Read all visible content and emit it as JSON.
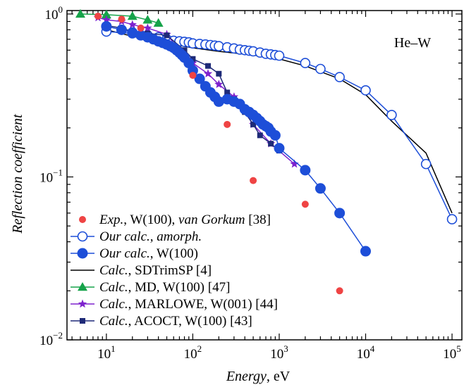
{
  "chart_data": {
    "type": "scatter",
    "xlabel_italic": "Energy",
    "xlabel_rest": ", eV",
    "ylabel": "Reflection coefficient",
    "x_scale": "log",
    "y_scale": "log",
    "xlim": [
      3.5,
      130000
    ],
    "ylim": [
      0.01,
      1.05
    ],
    "annotation": "He–W",
    "grid": false,
    "legend_position": "bottom-left",
    "x_ticks": [
      {
        "value": 10,
        "base": "10",
        "exp": "1"
      },
      {
        "value": 100,
        "base": "10",
        "exp": "2"
      },
      {
        "value": 1000,
        "base": "10",
        "exp": "3"
      },
      {
        "value": 10000,
        "base": "10",
        "exp": "4"
      },
      {
        "value": 100000,
        "base": "10",
        "exp": "5"
      }
    ],
    "y_ticks": [
      {
        "value": 1,
        "base": "10",
        "exp": "0"
      },
      {
        "value": 0.1,
        "base": "10",
        "exp": "−1"
      },
      {
        "value": 0.01,
        "base": "10",
        "exp": "−2"
      }
    ],
    "series": [
      {
        "legend": [
          {
            "t": "Exp.",
            "i": true
          },
          {
            "t": ", W(100), ",
            "i": false
          },
          {
            "t": "van Gorkum",
            "i": true
          },
          {
            "t": " [38]",
            "i": false
          }
        ],
        "color": "#ef4444",
        "marker": "dot",
        "line": false,
        "x": [
          8,
          15,
          25,
          100,
          250,
          500,
          2000,
          5000
        ],
        "y": [
          0.97,
          0.93,
          0.82,
          0.42,
          0.21,
          0.095,
          0.068,
          0.02
        ]
      },
      {
        "legend": [
          {
            "t": "Our calc., amorph.",
            "i": true
          }
        ],
        "color": "#1d4ed8",
        "marker": "open-circle",
        "line": true,
        "x": [
          10,
          20,
          30,
          40,
          50,
          60,
          70,
          80,
          90,
          100,
          120,
          140,
          160,
          180,
          200,
          250,
          300,
          350,
          400,
          450,
          500,
          600,
          700,
          800,
          900,
          1000,
          2000,
          3000,
          5000,
          10000,
          20000,
          50000,
          100000
        ],
        "y": [
          0.78,
          0.76,
          0.74,
          0.72,
          0.7,
          0.685,
          0.68,
          0.675,
          0.67,
          0.66,
          0.655,
          0.65,
          0.645,
          0.64,
          0.635,
          0.625,
          0.615,
          0.605,
          0.6,
          0.595,
          0.59,
          0.58,
          0.57,
          0.565,
          0.56,
          0.555,
          0.5,
          0.46,
          0.41,
          0.34,
          0.24,
          0.12,
          0.055
        ]
      },
      {
        "legend": [
          {
            "t": "Our calc.",
            "i": true
          },
          {
            "t": ", W(100)",
            "i": false
          }
        ],
        "color": "#1d4ed8",
        "marker": "filled-circle",
        "line": true,
        "x": [
          10,
          15,
          20,
          25,
          30,
          35,
          40,
          45,
          50,
          55,
          60,
          65,
          70,
          75,
          80,
          90,
          100,
          120,
          140,
          160,
          180,
          200,
          250,
          300,
          350,
          400,
          450,
          500,
          550,
          600,
          650,
          700,
          750,
          800,
          900,
          1000,
          2000,
          3000,
          5000,
          10000
        ],
        "y": [
          0.84,
          0.8,
          0.77,
          0.74,
          0.72,
          0.7,
          0.68,
          0.665,
          0.65,
          0.635,
          0.62,
          0.6,
          0.58,
          0.56,
          0.54,
          0.5,
          0.45,
          0.4,
          0.36,
          0.33,
          0.31,
          0.29,
          0.3,
          0.29,
          0.28,
          0.26,
          0.25,
          0.24,
          0.23,
          0.22,
          0.21,
          0.205,
          0.2,
          0.19,
          0.18,
          0.15,
          0.11,
          0.085,
          0.06,
          0.035
        ]
      },
      {
        "legend": [
          {
            "t": "Calc.",
            "i": true
          },
          {
            "t": ", SDTrimSP [4]",
            "i": false
          }
        ],
        "color": "#000000",
        "marker": "none",
        "line": true,
        "x": [
          10,
          20,
          50,
          100,
          200,
          500,
          1000,
          2000,
          5000,
          10000,
          20000,
          50000,
          100000
        ],
        "y": [
          0.8,
          0.73,
          0.66,
          0.62,
          0.59,
          0.56,
          0.53,
          0.48,
          0.4,
          0.32,
          0.22,
          0.14,
          0.06
        ]
      },
      {
        "legend": [
          {
            "t": "Calc.",
            "i": true
          },
          {
            "t": ", MD, W(100) [47]",
            "i": false
          }
        ],
        "color": "#16a34a",
        "marker": "triangle",
        "line": true,
        "x": [
          5,
          10,
          20,
          30,
          40
        ],
        "y": [
          1.0,
          0.99,
          0.97,
          0.92,
          0.88
        ]
      },
      {
        "legend": [
          {
            "t": "Calc.",
            "i": true
          },
          {
            "t": ", MARLOWE, W(001) [44]",
            "i": false
          }
        ],
        "color": "#7e22ce",
        "marker": "star",
        "line": true,
        "x": [
          8,
          10,
          15,
          20,
          30,
          50,
          70,
          100,
          150,
          200,
          300,
          500,
          800,
          1500
        ],
        "y": [
          0.95,
          0.92,
          0.9,
          0.86,
          0.82,
          0.75,
          0.6,
          0.5,
          0.43,
          0.37,
          0.31,
          0.21,
          0.16,
          0.12
        ]
      },
      {
        "legend": [
          {
            "t": "Calc.",
            "i": true
          },
          {
            "t": ", ACOCT, W(100) [43]",
            "i": false
          }
        ],
        "color": "#1e2a78",
        "marker": "square",
        "line": true,
        "x": [
          10,
          15,
          20,
          30,
          50,
          80,
          100,
          150,
          200,
          250,
          300,
          400,
          500,
          600,
          800,
          1000
        ],
        "y": [
          0.85,
          0.82,
          0.78,
          0.76,
          0.74,
          0.6,
          0.53,
          0.48,
          0.43,
          0.33,
          0.3,
          0.25,
          0.21,
          0.18,
          0.16,
          0.145
        ]
      }
    ]
  }
}
